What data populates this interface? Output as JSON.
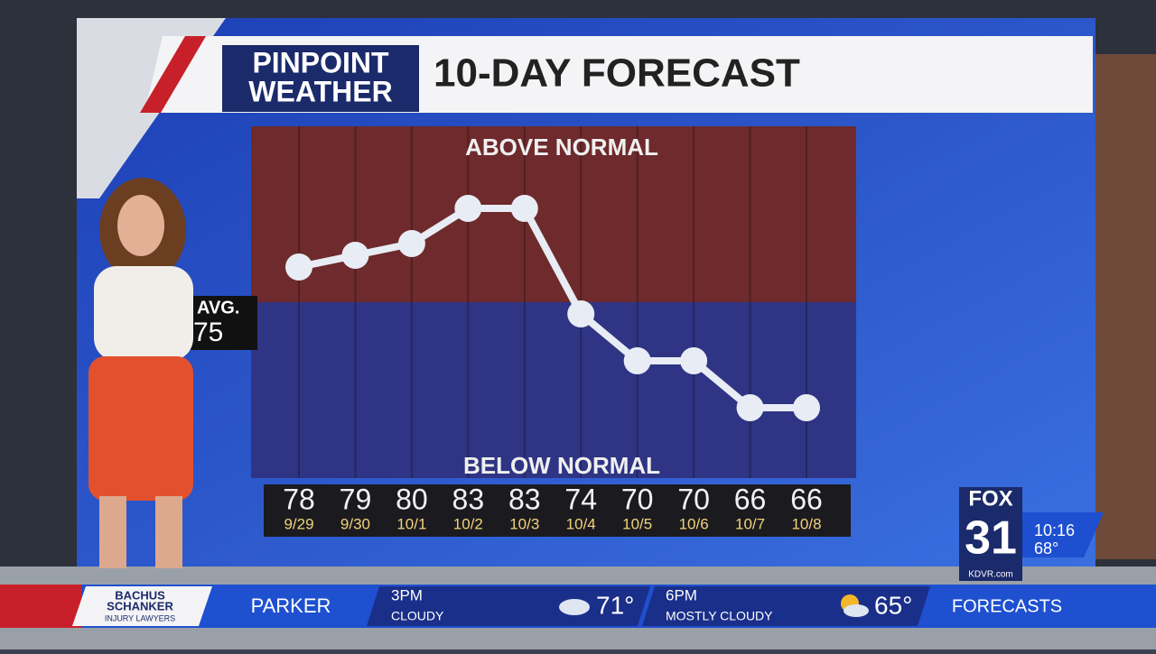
{
  "header": {
    "logo_line1": "PINPOINT",
    "logo_line2": "WEATHER",
    "title": "10-DAY FORECAST"
  },
  "chart_data": {
    "type": "line",
    "title": "10-DAY FORECAST",
    "categories": [
      "9/29",
      "9/30",
      "10/1",
      "10/2",
      "10/3",
      "10/4",
      "10/5",
      "10/6",
      "10/7",
      "10/8"
    ],
    "values": [
      78,
      79,
      80,
      83,
      83,
      74,
      70,
      70,
      66,
      66
    ],
    "ylim": [
      60,
      90
    ],
    "normal": 75,
    "normal_label": "AVG.",
    "above_label": "ABOVE NORMAL",
    "below_label": "BELOW NORMAL",
    "color": "#e8ecf4",
    "above_color": "#6e2a2c",
    "below_color": "#2f3584"
  },
  "station": {
    "network": "FOX",
    "channel": "31",
    "site": "KDVR.com",
    "time": "10:16",
    "temp": "68°"
  },
  "ticker": {
    "sponsor1": "BACHUS",
    "sponsor2": "SCHANKER",
    "sponsor3": "INJURY LAWYERS",
    "location": "PARKER",
    "slot1_time": "3PM",
    "slot1_cond": "CLOUDY",
    "slot1_temp": "71°",
    "slot2_time": "6PM",
    "slot2_cond": "MOSTLY CLOUDY",
    "slot2_temp": "65°",
    "section": "FORECASTS"
  }
}
